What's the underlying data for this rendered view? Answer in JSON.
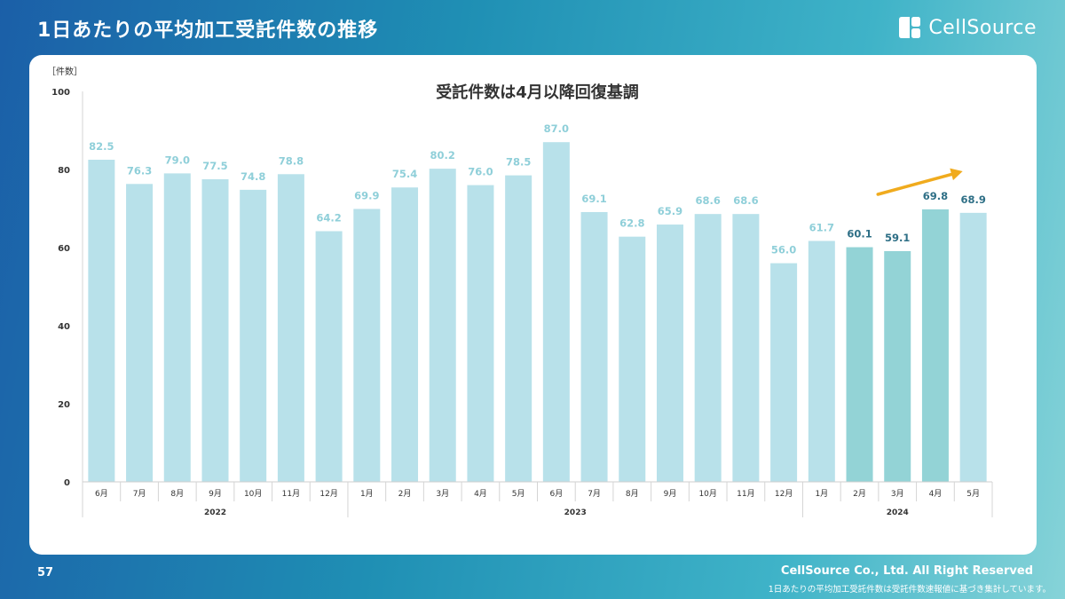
{
  "header": {
    "title": "1日あたりの平均加工受託件数の推移"
  },
  "logo": {
    "text": "CellSource",
    "icon": "cellsource-logo-icon"
  },
  "footer": {
    "page_number": "57",
    "copyright": "CellSource Co., Ltd. All Right Reserved",
    "note": "1日あたりの平均加工受託件数は受託件数速報値に基づき集計しています。"
  },
  "colors": {
    "bar_light": "#b8e1ea",
    "bar_highlight": "#93d3d6",
    "label_light": "#8fcfd9",
    "label_highlight": "#2e6f86",
    "trend_arrow": "#f0ab1e"
  },
  "chart_data": {
    "type": "bar",
    "title": "受託件数は4月以降回復基調",
    "ylabel": "［件数］",
    "xlabel": "",
    "ylim": [
      0,
      100
    ],
    "yticks": [
      0,
      20,
      40,
      60,
      80,
      100
    ],
    "grid": false,
    "categories": [
      "6月",
      "7月",
      "8月",
      "9月",
      "10月",
      "11月",
      "12月",
      "1月",
      "2月",
      "3月",
      "4月",
      "5月",
      "6月",
      "7月",
      "8月",
      "9月",
      "10月",
      "11月",
      "12月",
      "1月",
      "2月",
      "3月",
      "4月",
      "5月"
    ],
    "values": [
      82.5,
      76.3,
      79.0,
      77.5,
      74.8,
      78.8,
      64.2,
      69.9,
      75.4,
      80.2,
      76.0,
      78.5,
      87.0,
      69.1,
      62.8,
      65.9,
      68.6,
      68.6,
      56.0,
      61.7,
      60.1,
      59.1,
      69.8,
      68.9
    ],
    "data_labels": [
      "82.5",
      "76.3",
      "79.0",
      "77.5",
      "74.8",
      "78.8",
      "64.2",
      "69.9",
      "75.4",
      "80.2",
      "76.0",
      "78.5",
      "87.0",
      "69.1",
      "62.8",
      "65.9",
      "68.6",
      "68.6",
      "56.0",
      "61.7",
      "60.1",
      "59.1",
      "69.8",
      "68.9"
    ],
    "highlighted": [
      false,
      false,
      false,
      false,
      false,
      false,
      false,
      false,
      false,
      false,
      false,
      false,
      false,
      false,
      false,
      false,
      false,
      false,
      false,
      false,
      true,
      true,
      true,
      false
    ],
    "label_emphasis": [
      false,
      false,
      false,
      false,
      false,
      false,
      false,
      false,
      false,
      false,
      false,
      false,
      false,
      false,
      false,
      false,
      false,
      false,
      false,
      false,
      true,
      true,
      true,
      true
    ],
    "groups": [
      {
        "label": "2022",
        "start": 0,
        "end": 6
      },
      {
        "label": "2023",
        "start": 7,
        "end": 18
      },
      {
        "label": "2024",
        "start": 19,
        "end": 23
      }
    ],
    "annotation": {
      "type": "trend-arrow",
      "direction": "up",
      "from_index": 21,
      "to_index": 23
    }
  }
}
